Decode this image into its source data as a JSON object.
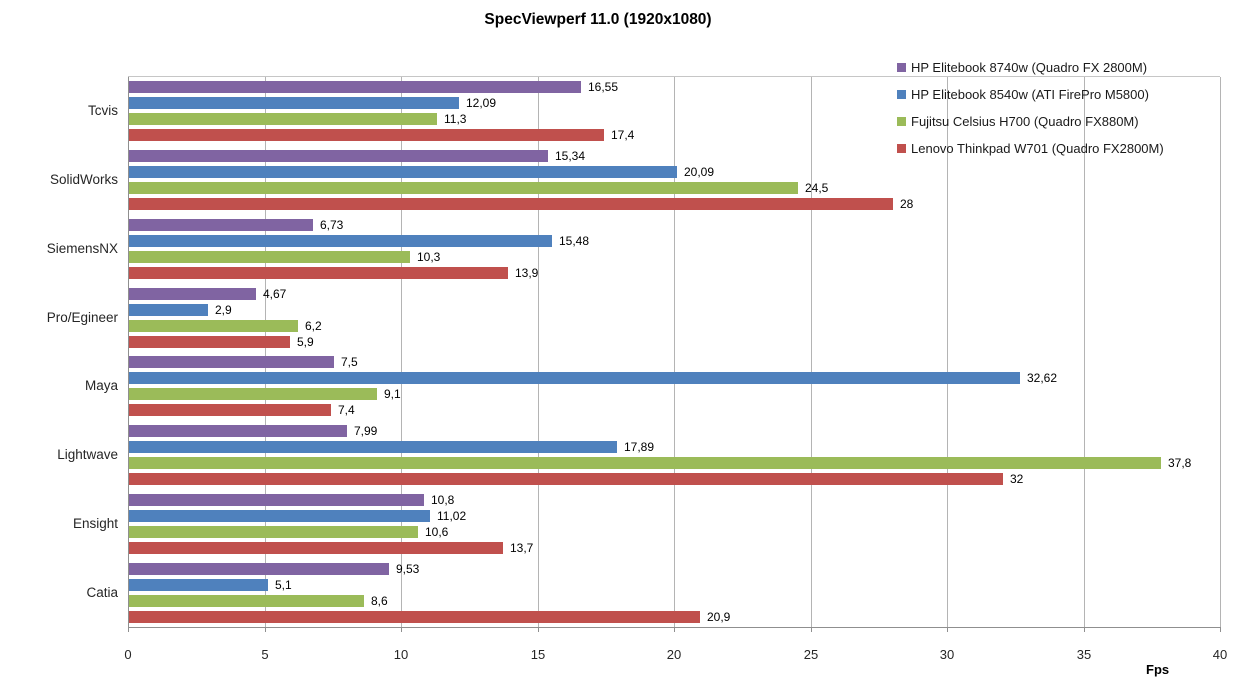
{
  "title": "SpecViewperf 11.0 (1920x1080)",
  "chart_data": {
    "type": "bar",
    "orientation": "horizontal",
    "title": "SpecViewperf 11.0 (1920x1080)",
    "xlabel": "Fps",
    "ylabel": "",
    "xlim": [
      0,
      40
    ],
    "x_ticks": [
      0,
      5,
      10,
      15,
      20,
      25,
      30,
      35,
      40
    ],
    "grid": true,
    "legend_position": "top-right",
    "decimal_separator": ",",
    "categories": [
      "Tcvis",
      "SolidWorks",
      "SiemensNX",
      "Pro/Egineer",
      "Maya",
      "Lightwave",
      "Ensight",
      "Catia"
    ],
    "series": [
      {
        "name": "HP Elitebook 8740w (Quadro FX 2800M)",
        "color": "#8064A2",
        "values": [
          16.55,
          15.34,
          6.73,
          4.67,
          7.5,
          7.99,
          10.8,
          9.53
        ]
      },
      {
        "name": "HP Elitebook 8540w (ATI FirePro M5800)",
        "color": "#4F81BD",
        "values": [
          12.09,
          20.09,
          15.48,
          2.9,
          32.62,
          17.89,
          11.02,
          5.1
        ]
      },
      {
        "name": "Fujitsu Celsius H700 (Quadro FX880M)",
        "color": "#9BBB59",
        "values": [
          11.3,
          24.5,
          10.3,
          6.2,
          9.1,
          37.8,
          10.6,
          8.6
        ]
      },
      {
        "name": "Lenovo Thinkpad W701 (Quadro FX2800M)",
        "color": "#C0504D",
        "values": [
          17.4,
          28,
          13.9,
          5.9,
          7.4,
          32,
          13.7,
          20.9
        ]
      }
    ]
  }
}
